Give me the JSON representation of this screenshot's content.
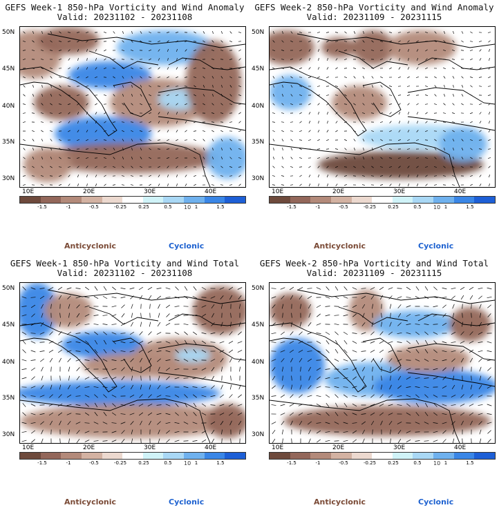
{
  "panels": [
    {
      "title": "GEFS Week-1 850-hPa Vorticity and Wind Anomaly",
      "valid": "Valid: 20231102 - 20231108"
    },
    {
      "title": "GEFS Week-2 850-hPa Vorticity and Wind Anomaly",
      "valid": "Valid: 20231109 - 20231115"
    },
    {
      "title": "GEFS Week-1 850-hPa Vorticity and Wind Total",
      "valid": "Valid: 20231102 - 20231108"
    },
    {
      "title": "GEFS Week-2 850-hPa Vorticity and Wind Total",
      "valid": "Valid: 20231109 - 20231115"
    }
  ],
  "lat_labels": [
    "50N",
    "45N",
    "40N",
    "35N",
    "30N"
  ],
  "lon_labels": [
    "10E",
    "20E",
    "30E",
    "40E"
  ],
  "colorbar": {
    "labels": [
      "-1.5",
      "-1",
      "-0.5",
      "-0.25",
      "0.25",
      "0.5",
      "1",
      "1.5"
    ],
    "unit_mark": "10",
    "colors": [
      "#6e4a3c",
      "#93675a",
      "#b38a7a",
      "#d3b2a2",
      "#ecd9cf",
      "#ffffff",
      "#d0f3f8",
      "#a9d8f5",
      "#6fb1ee",
      "#3a86e6",
      "#1d5fd6"
    ]
  },
  "legend": {
    "anticyclonic": "Anticyclonic",
    "cyclonic": "Cyclonic"
  }
}
